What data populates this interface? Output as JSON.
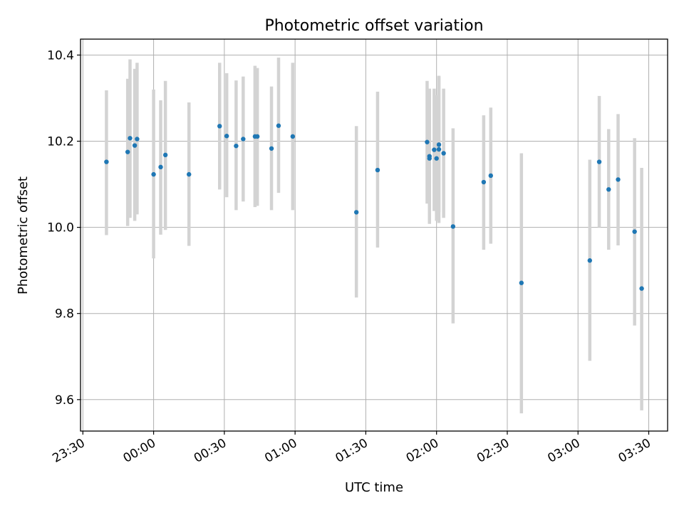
{
  "chart_data": {
    "type": "scatter",
    "title": "Photometric offset variation",
    "xlabel": "UTC time",
    "ylabel": "Photometric offset",
    "x_unit": "UTC time, HH:MM (times after midnight belong to the following day)",
    "xlim": [
      "23:29",
      "03:38"
    ],
    "ylim": [
      9.527,
      10.437
    ],
    "xticks": [
      "23:30",
      "00:00",
      "00:30",
      "01:00",
      "01:30",
      "02:00",
      "02:30",
      "03:00",
      "03:30"
    ],
    "yticks": [
      "9.6",
      "9.8",
      "10.0",
      "10.2",
      "10.4"
    ],
    "grid": true,
    "colors": {
      "marker": "#1f77b4",
      "errorbar": "#d3d3d3",
      "grid": "#b0b0b0"
    },
    "points": [
      {
        "x": "23:40",
        "y": 10.152,
        "lo": 9.982,
        "hi": 10.318
      },
      {
        "x": "23:49",
        "y": 10.175,
        "lo": 10.003,
        "hi": 10.345
      },
      {
        "x": "23:50",
        "y": 10.207,
        "lo": 10.022,
        "hi": 10.39
      },
      {
        "x": "23:52",
        "y": 10.19,
        "lo": 10.015,
        "hi": 10.368
      },
      {
        "x": "23:53",
        "y": 10.205,
        "lo": 10.03,
        "hi": 10.382
      },
      {
        "x": "00:00",
        "y": 10.123,
        "lo": 9.928,
        "hi": 10.32
      },
      {
        "x": "00:03",
        "y": 10.14,
        "lo": 9.983,
        "hi": 10.295
      },
      {
        "x": "00:05",
        "y": 10.168,
        "lo": 9.994,
        "hi": 10.34
      },
      {
        "x": "00:15",
        "y": 10.123,
        "lo": 9.957,
        "hi": 10.29
      },
      {
        "x": "00:28",
        "y": 10.235,
        "lo": 10.088,
        "hi": 10.382
      },
      {
        "x": "00:31",
        "y": 10.212,
        "lo": 10.07,
        "hi": 10.358
      },
      {
        "x": "00:35",
        "y": 10.189,
        "lo": 10.04,
        "hi": 10.341
      },
      {
        "x": "00:38",
        "y": 10.205,
        "lo": 10.06,
        "hi": 10.35
      },
      {
        "x": "00:43",
        "y": 10.211,
        "lo": 10.047,
        "hi": 10.375
      },
      {
        "x": "00:44",
        "y": 10.211,
        "lo": 10.05,
        "hi": 10.37
      },
      {
        "x": "00:50",
        "y": 10.183,
        "lo": 10.04,
        "hi": 10.327
      },
      {
        "x": "00:53",
        "y": 10.236,
        "lo": 10.08,
        "hi": 10.394
      },
      {
        "x": "00:59",
        "y": 10.211,
        "lo": 10.04,
        "hi": 10.382
      },
      {
        "x": "01:26",
        "y": 10.035,
        "lo": 9.837,
        "hi": 10.235
      },
      {
        "x": "01:35",
        "y": 10.133,
        "lo": 9.953,
        "hi": 10.315
      },
      {
        "x": "01:56",
        "y": 10.198,
        "lo": 10.055,
        "hi": 10.34
      },
      {
        "x": "01:57",
        "y": 10.165,
        "lo": 10.01,
        "hi": 10.322
      },
      {
        "x": "01:57",
        "y": 10.16,
        "lo": 10.008,
        "hi": 10.314
      },
      {
        "x": "01:59",
        "y": 10.18,
        "lo": 10.038,
        "hi": 10.322
      },
      {
        "x": "02:00",
        "y": 10.16,
        "lo": 10.015,
        "hi": 10.307
      },
      {
        "x": "02:01",
        "y": 10.181,
        "lo": 10.01,
        "hi": 10.352
      },
      {
        "x": "02:01",
        "y": 10.192,
        "lo": 10.035,
        "hi": 10.35
      },
      {
        "x": "02:03",
        "y": 10.172,
        "lo": 10.022,
        "hi": 10.322
      },
      {
        "x": "02:07",
        "y": 10.002,
        "lo": 9.777,
        "hi": 10.23
      },
      {
        "x": "02:20",
        "y": 10.105,
        "lo": 9.948,
        "hi": 10.26
      },
      {
        "x": "02:23",
        "y": 10.12,
        "lo": 9.962,
        "hi": 10.278
      },
      {
        "x": "02:36",
        "y": 9.871,
        "lo": 9.568,
        "hi": 10.172
      },
      {
        "x": "03:05",
        "y": 9.923,
        "lo": 9.69,
        "hi": 10.157
      },
      {
        "x": "03:09",
        "y": 10.152,
        "lo": 10.0,
        "hi": 10.305
      },
      {
        "x": "03:13",
        "y": 10.088,
        "lo": 9.948,
        "hi": 10.228
      },
      {
        "x": "03:17",
        "y": 10.111,
        "lo": 9.958,
        "hi": 10.263
      },
      {
        "x": "03:24",
        "y": 9.99,
        "lo": 9.772,
        "hi": 10.207
      },
      {
        "x": "03:27",
        "y": 9.858,
        "lo": 9.575,
        "hi": 10.138
      }
    ]
  }
}
